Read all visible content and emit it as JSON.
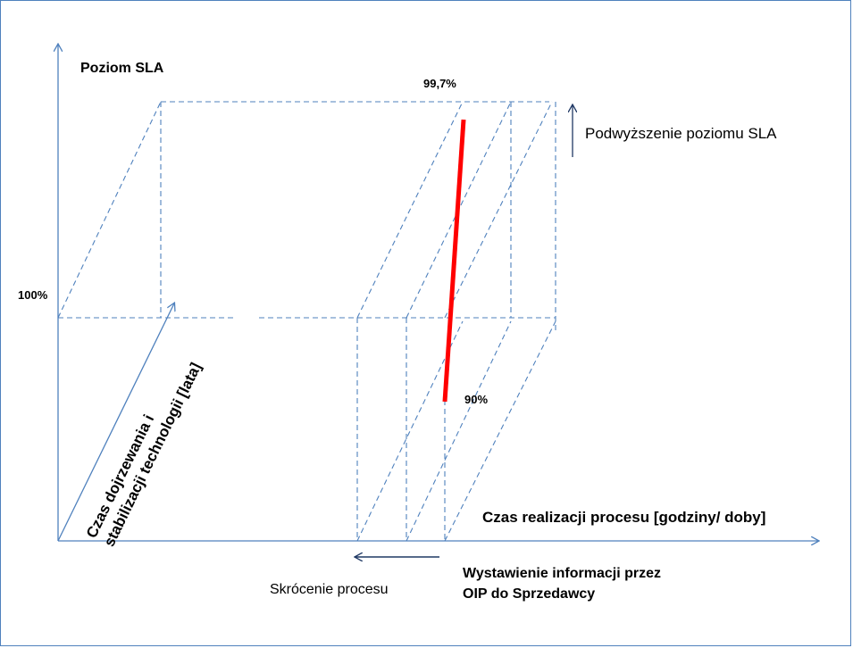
{
  "labels": {
    "y_axis": "Poziom SLA",
    "x_axis": "Czas realizacji procesu  [godziny/ doby]",
    "z_axis_line1": "Czas dojrzewania i",
    "z_axis_line2": "stabilizacji technologii [lata]",
    "level_100": "100%",
    "level_997": "99,7%",
    "level_90": "90%",
    "sla_increase": "Podwyższenie poziomu SLA",
    "process_shortening": "Skrócenie procesu",
    "event_line1": "Wystawienie informacji  przez",
    "event_line2": "OIP do Sprzedawcy"
  },
  "colors": {
    "axis": "#4f81bd",
    "dashed": "#4f81bd",
    "highlight": "#ff0000",
    "arrow_dark": "#1f3864"
  }
}
